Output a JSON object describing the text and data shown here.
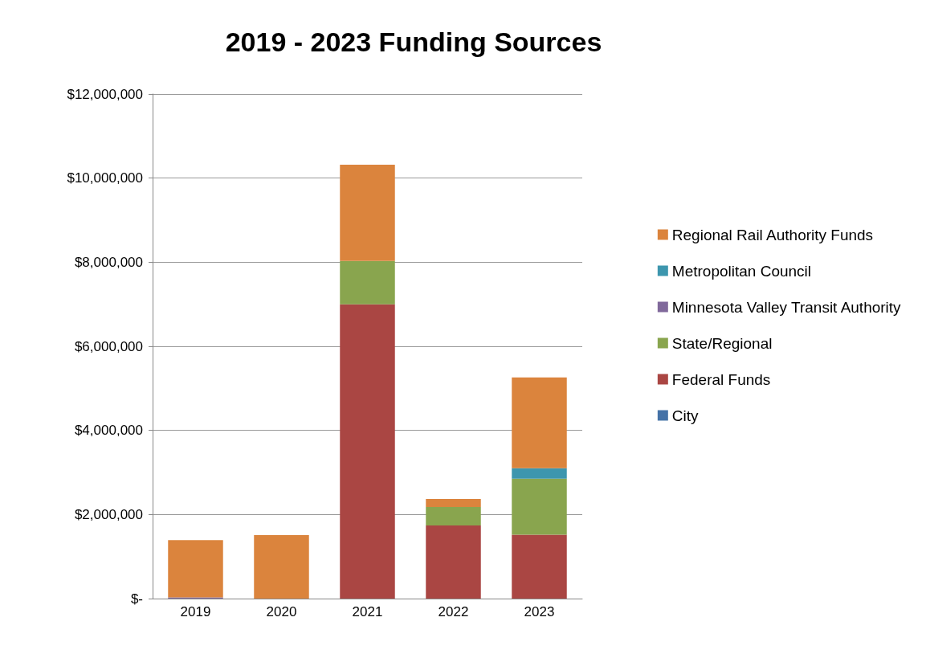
{
  "chart_data": {
    "type": "bar",
    "title": "2019 - 2023 Funding Sources",
    "categories": [
      "2019",
      "2020",
      "2021",
      "2022",
      "2023"
    ],
    "stacked": true,
    "series": [
      {
        "name": "City",
        "color": "#4572a7",
        "values": [
          0,
          0,
          0,
          0,
          0
        ]
      },
      {
        "name": "Federal Funds",
        "color": "#aa4643",
        "values": [
          0,
          0,
          7000000,
          1740000,
          1520000
        ]
      },
      {
        "name": "State/Regional",
        "color": "#89a54e",
        "values": [
          0,
          0,
          1030000,
          440000,
          1330000
        ]
      },
      {
        "name": "Minnesota Valley Transit Authority",
        "color": "#80699b",
        "values": [
          30000,
          0,
          0,
          0,
          0
        ]
      },
      {
        "name": "Metropolitan Council",
        "color": "#3d96ae",
        "values": [
          0,
          0,
          0,
          0,
          250000
        ]
      },
      {
        "name": "Regional Rail Authority Funds",
        "color": "#db843d",
        "values": [
          1360000,
          1510000,
          2290000,
          190000,
          2160000
        ]
      }
    ],
    "ylim": [
      0,
      12000000
    ],
    "yticks": [
      {
        "value": 0,
        "label": "$-"
      },
      {
        "value": 2000000,
        "label": "$2,000,000"
      },
      {
        "value": 4000000,
        "label": "$4,000,000"
      },
      {
        "value": 6000000,
        "label": "$6,000,000"
      },
      {
        "value": 8000000,
        "label": "$8,000,000"
      },
      {
        "value": 10000000,
        "label": "$10,000,000"
      },
      {
        "value": 12000000,
        "label": "$12,000,000"
      }
    ],
    "grid": "y",
    "legend": "right"
  }
}
